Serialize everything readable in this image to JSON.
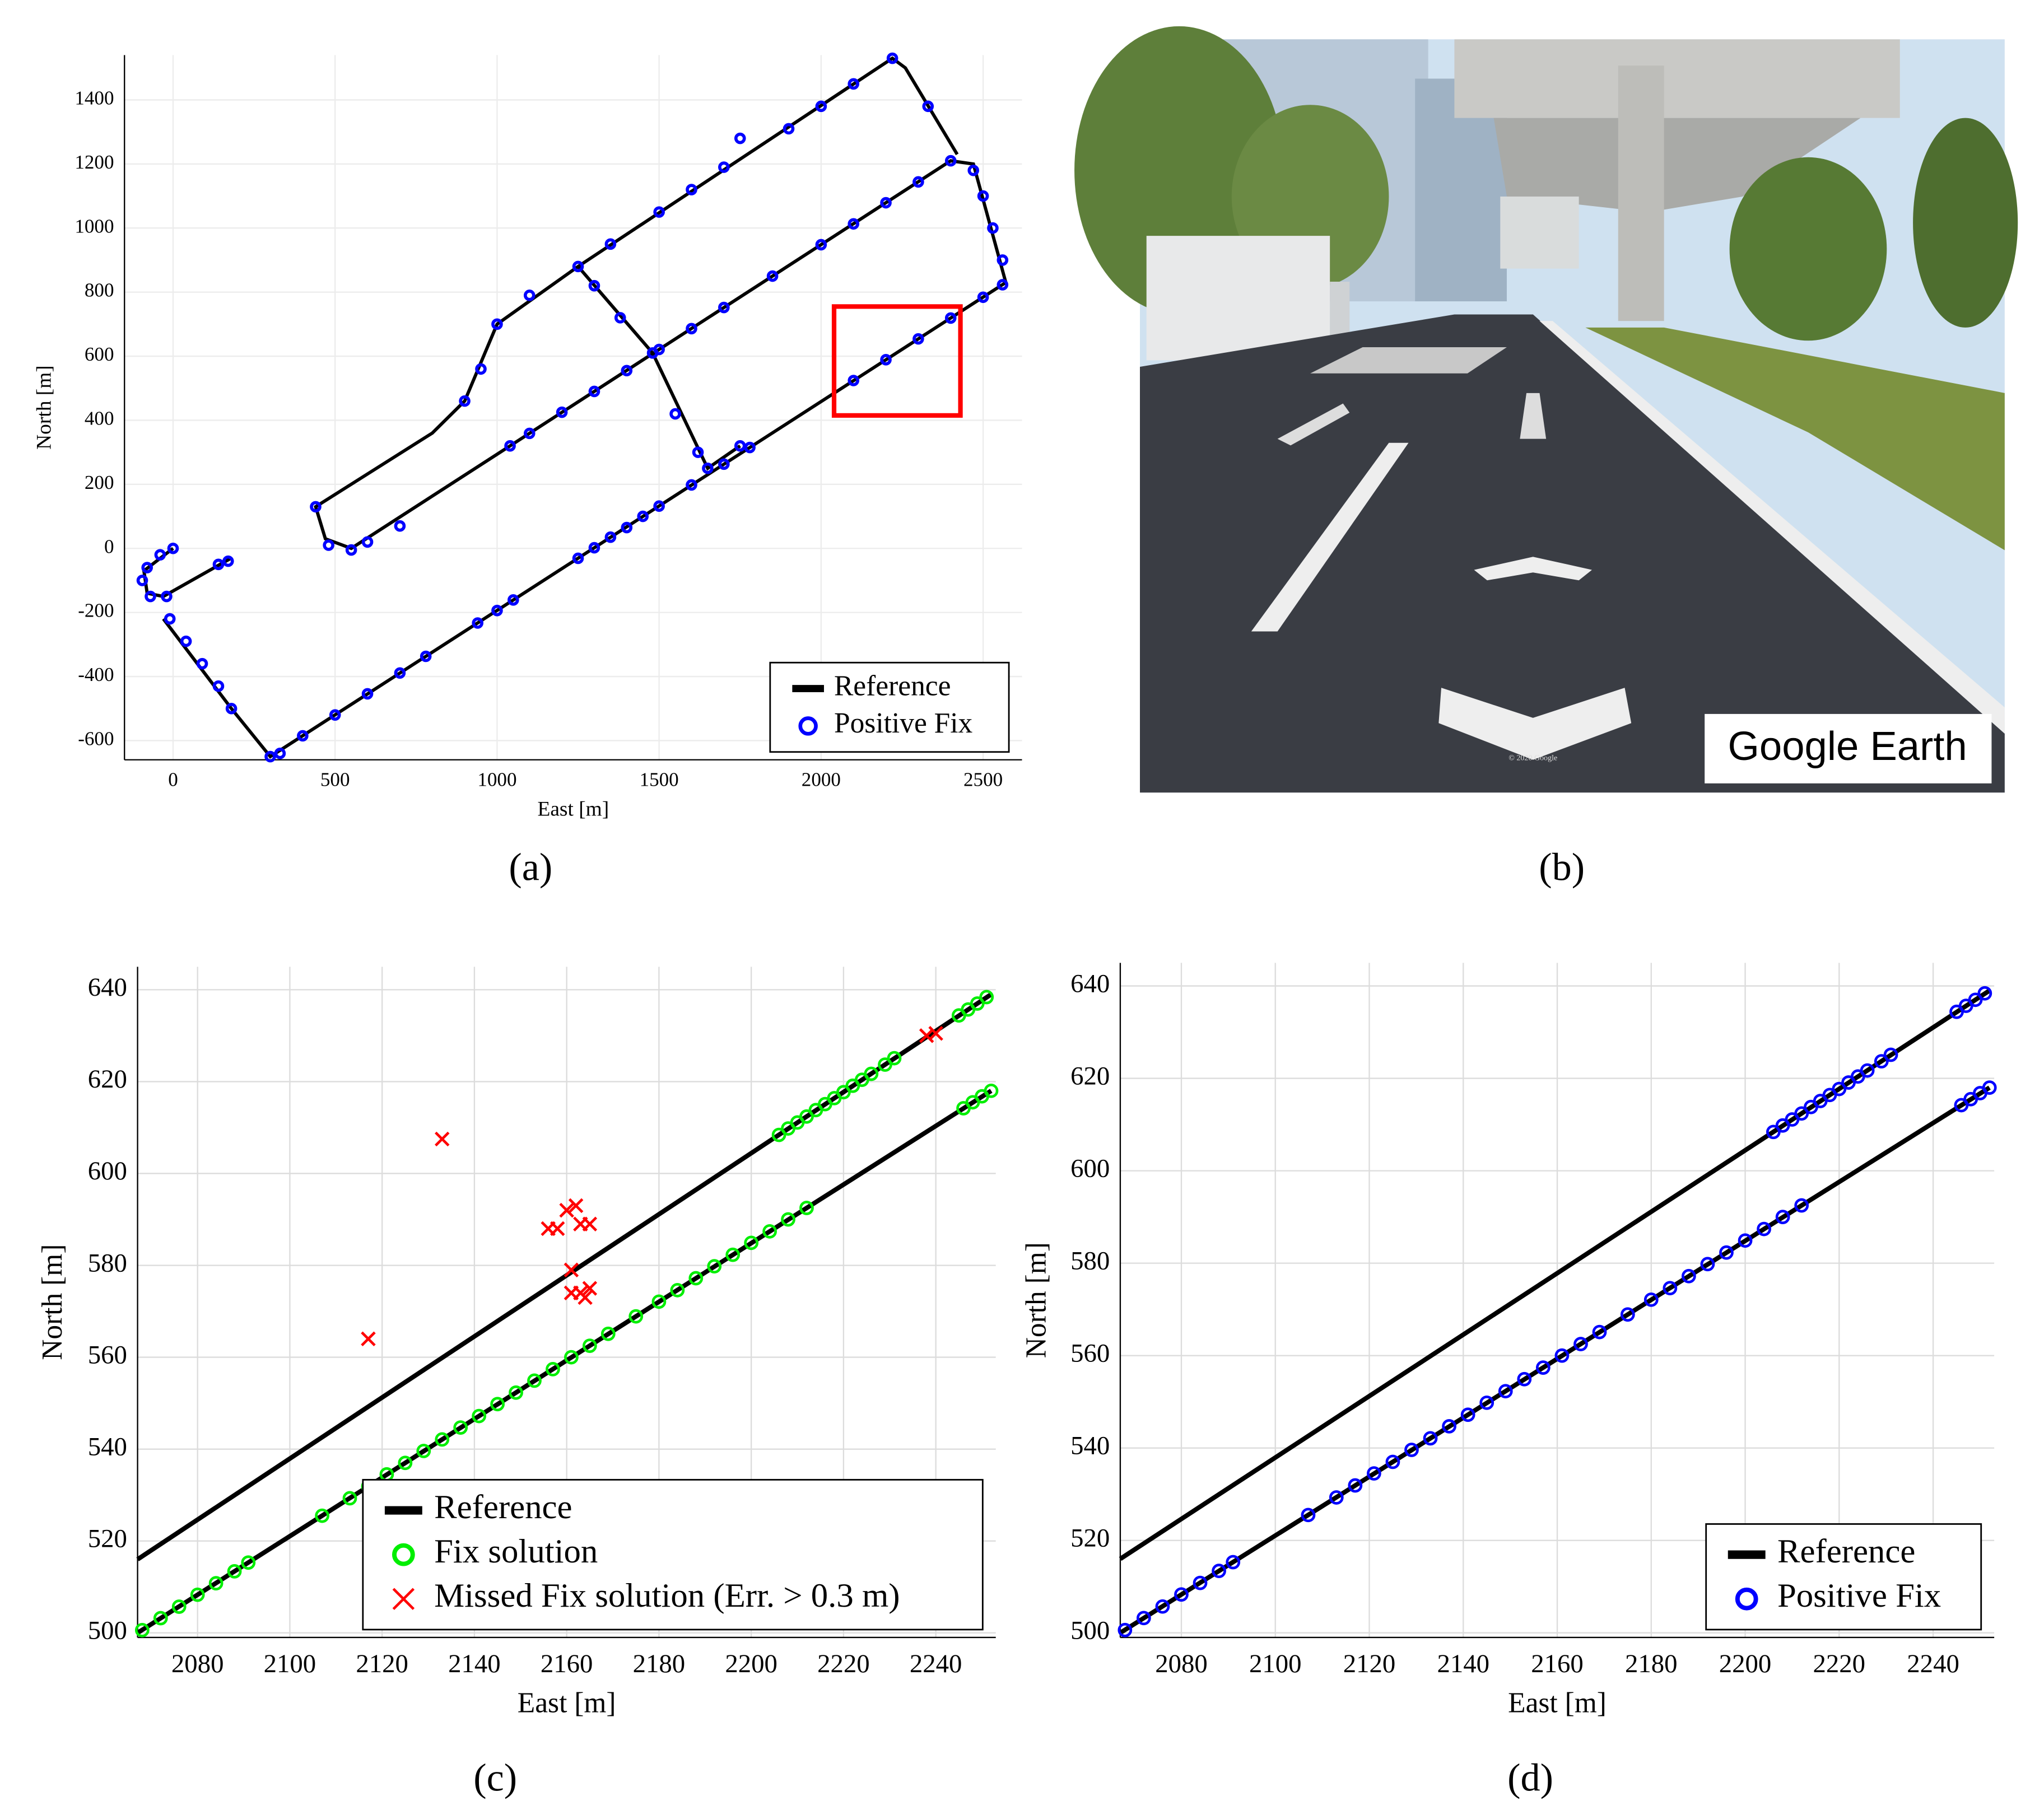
{
  "chart_data": [
    {
      "type": "scatter",
      "label": "(a)",
      "x_label": "East [m]",
      "y_label": "North [m]",
      "xlim": [
        -150,
        2620
      ],
      "xticks": [
        0,
        500,
        1000,
        1500,
        2000,
        2500
      ],
      "ylim": [
        -660,
        1540
      ],
      "yticks": [
        -600,
        -400,
        -200,
        0,
        200,
        400,
        600,
        800,
        1000,
        1200,
        1400
      ],
      "grid": true,
      "legend": "lower right",
      "highlight": {
        "x": [
          2040,
          2430
        ],
        "y": [
          415,
          755
        ],
        "color": "#ff0000"
      },
      "series": [
        {
          "name": "Reference",
          "color": "#000000",
          "style": "line",
          "x": [
            0,
            -90,
            -80,
            -30,
            180,
            null,
            -30,
            180,
            300,
            2570,
            2470,
            2400,
            1040,
            550,
            470,
            440,
            800,
            900,
            1000,
            1250,
            2220,
            2260,
            2420,
            null,
            1250,
            1480,
            1650,
            1750
          ],
          "values": [
            0,
            -70,
            -140,
            -150,
            -30,
            null,
            -220,
            -500,
            -650,
            830,
            1200,
            1210,
            320,
            0,
            30,
            130,
            360,
            460,
            700,
            880,
            1530,
            1500,
            1230,
            null,
            880,
            610,
            250,
            320
          ]
        },
        {
          "name": "Positive Fix",
          "color": "#0000ff",
          "style": "circle",
          "x": [
            0,
            -40,
            -80,
            -95,
            -70,
            -20,
            140,
            170,
            -10,
            40,
            90,
            140,
            180,
            300,
            330,
            400,
            500,
            600,
            700,
            780,
            940,
            1000,
            1050,
            1250,
            1300,
            1350,
            1400,
            1450,
            1500,
            1600,
            1700,
            1780,
            2100,
            2200,
            2300,
            2400,
            2500,
            2560,
            2560,
            2530,
            2500,
            2470,
            2400,
            2300,
            2200,
            2100,
            2000,
            1850,
            1700,
            1600,
            1500,
            1400,
            1300,
            1200,
            1100,
            1040,
            550,
            600,
            700,
            480,
            440,
            900,
            950,
            1000,
            1100,
            1250,
            1350,
            1500,
            1600,
            1700,
            1750,
            1900,
            2000,
            2100,
            2220,
            2330,
            1300,
            1380,
            1480,
            1550,
            1620,
            1650,
            1750
          ],
          "values": [
            0,
            -20,
            -60,
            -100,
            -150,
            -150,
            -50,
            -40,
            -220,
            -290,
            -360,
            -430,
            -500,
            -650,
            -640,
            -585,
            -520,
            -454,
            -389,
            -337,
            -233,
            -194,
            -161,
            -31,
            2,
            35,
            65,
            100,
            132,
            198,
            263,
            315,
            524,
            589,
            654,
            719,
            784,
            823,
            900,
            1000,
            1100,
            1180,
            1210,
            1144,
            1079,
            1013,
            948,
            850,
            752,
            686,
            621,
            555,
            490,
            425,
            359,
            320,
            -5,
            20,
            70,
            10,
            130,
            460,
            560,
            700,
            790,
            880,
            950,
            1050,
            1120,
            1190,
            1280,
            1310,
            1380,
            1450,
            1530,
            1380,
            820,
            720,
            610,
            420,
            300,
            250,
            320
          ]
        }
      ]
    },
    {
      "type": "scatter",
      "label": "(c)",
      "x_label": "East [m]",
      "y_label": "North [m]",
      "xlim": [
        2067,
        2253
      ],
      "xticks": [
        2080,
        2100,
        2120,
        2140,
        2160,
        2180,
        2200,
        2220,
        2240
      ],
      "ylim": [
        499,
        645
      ],
      "yticks": [
        500,
        520,
        540,
        560,
        580,
        600,
        620,
        640
      ],
      "grid": true,
      "legend": "lower right",
      "series": [
        {
          "name": "Reference",
          "color": "#000000",
          "style": "line",
          "x": [
            2067,
            2252,
            null,
            2067,
            2252
          ],
          "values": [
            516,
            639,
            null,
            500,
            618
          ]
        },
        {
          "name": "Fix solution",
          "color": "#00ee00",
          "style": "circle",
          "x": [
            2068,
            2072,
            2076,
            2080,
            2084,
            2088,
            2091,
            2107,
            2113,
            2117,
            2121,
            2125,
            2129,
            2133,
            2137,
            2141,
            2145,
            2149,
            2153,
            2157,
            2161,
            2165,
            2169,
            2175,
            2180,
            2184,
            2188,
            2192,
            2196,
            2200,
            2204,
            2208,
            2212,
            2246,
            2248,
            2250,
            2252,
            2206,
            2208,
            2210,
            2212,
            2214,
            2216,
            2218,
            2220,
            2222,
            2224,
            2226,
            2229,
            2231,
            2245,
            2247,
            2249,
            2251
          ],
          "values": [
            500.6,
            503.2,
            505.7,
            508.3,
            510.8,
            513.4,
            515.3,
            525.5,
            529.3,
            531.9,
            534.5,
            537.0,
            539.6,
            542.1,
            544.7,
            547.2,
            549.8,
            552.3,
            554.9,
            557.4,
            560.0,
            562.5,
            565.1,
            568.9,
            572.1,
            574.6,
            577.2,
            579.8,
            582.3,
            584.9,
            587.4,
            590.0,
            592.5,
            614.2,
            615.5,
            616.8,
            618.0,
            608.4,
            609.8,
            611.1,
            612.4,
            613.8,
            615.1,
            616.4,
            617.7,
            619.1,
            620.4,
            621.7,
            623.7,
            625.1,
            634.4,
            635.7,
            637.0,
            638.4
          ]
        },
        {
          "name": "Missed Fix solution (Err. > 0.3 m)",
          "color": "#ff0000",
          "style": "cross",
          "x": [
            2117,
            2133,
            2156,
            2158,
            2160,
            2162,
            2163,
            2165,
            2161,
            2161,
            2163,
            2164,
            2165,
            2238,
            2240
          ],
          "values": [
            564,
            607.5,
            588,
            588,
            592,
            593,
            589,
            589,
            579,
            574,
            574,
            573,
            575,
            630,
            630.5
          ]
        }
      ]
    },
    {
      "type": "scatter",
      "label": "(d)",
      "x_label": "East [m]",
      "y_label": "North [m]",
      "xlim": [
        2067,
        2253
      ],
      "xticks": [
        2080,
        2100,
        2120,
        2140,
        2160,
        2180,
        2200,
        2220,
        2240
      ],
      "ylim": [
        499,
        645
      ],
      "yticks": [
        500,
        520,
        540,
        560,
        580,
        600,
        620,
        640
      ],
      "grid": true,
      "legend": "lower right",
      "series": [
        {
          "name": "Reference",
          "color": "#000000",
          "style": "line",
          "x": [
            2067,
            2252,
            null,
            2067,
            2252
          ],
          "values": [
            516,
            639,
            null,
            500,
            618
          ]
        },
        {
          "name": "Positive Fix",
          "color": "#0000ff",
          "style": "circle",
          "x": [
            2068,
            2072,
            2076,
            2080,
            2084,
            2088,
            2091,
            2107,
            2113,
            2117,
            2121,
            2125,
            2129,
            2133,
            2137,
            2141,
            2145,
            2149,
            2153,
            2157,
            2161,
            2165,
            2169,
            2175,
            2180,
            2184,
            2188,
            2192,
            2196,
            2200,
            2204,
            2208,
            2212,
            2246,
            2248,
            2250,
            2252,
            2206,
            2208,
            2210,
            2212,
            2214,
            2216,
            2218,
            2220,
            2222,
            2224,
            2226,
            2229,
            2231,
            2245,
            2247,
            2249,
            2251
          ],
          "values": [
            500.6,
            503.2,
            505.7,
            508.3,
            510.8,
            513.4,
            515.3,
            525.5,
            529.3,
            531.9,
            534.5,
            537.0,
            539.6,
            542.1,
            544.7,
            547.2,
            549.8,
            552.3,
            554.9,
            557.4,
            560.0,
            562.5,
            565.1,
            568.9,
            572.1,
            574.6,
            577.2,
            579.8,
            582.3,
            584.9,
            587.4,
            590.0,
            592.5,
            614.2,
            615.5,
            616.8,
            618.0,
            608.4,
            609.8,
            611.1,
            612.4,
            613.8,
            615.1,
            616.4,
            617.7,
            619.1,
            620.4,
            621.7,
            623.7,
            625.1,
            634.4,
            635.7,
            637.0,
            638.4
          ]
        }
      ]
    }
  ],
  "image_panel": {
    "label": "(b)",
    "watermark": "Google Earth",
    "copyright": "© 2020 Google"
  }
}
